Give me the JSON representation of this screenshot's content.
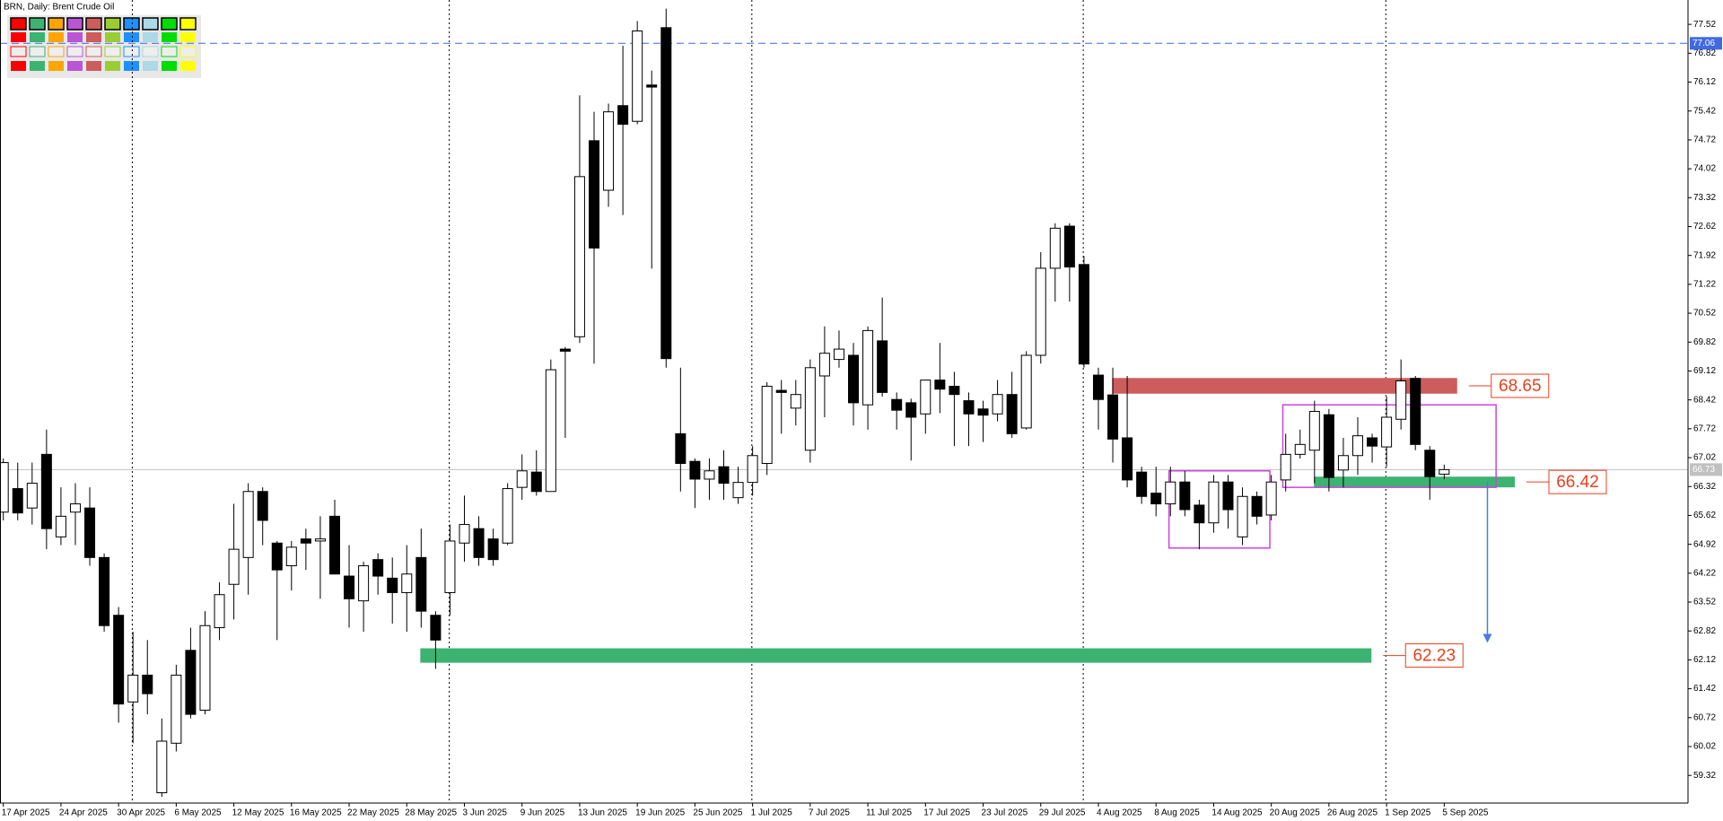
{
  "chart_data": {
    "type": "candlestick",
    "title": "BRN, Daily:  Brent Crude Oil",
    "categories": [
      "17 Apr 2025",
      null,
      null,
      null,
      "24 Apr 2025",
      null,
      null,
      null,
      "30 Apr 2025",
      null,
      null,
      null,
      "6 May 2025",
      null,
      null,
      null,
      "12 May 2025",
      null,
      null,
      null,
      "16 May 2025",
      null,
      null,
      null,
      "22 May 2025",
      null,
      null,
      null,
      "28 May 2025",
      null,
      null,
      null,
      "3 Jun 2025",
      null,
      null,
      null,
      "9 Jun 2025",
      null,
      null,
      null,
      "13 Jun 2025",
      null,
      null,
      null,
      "19 Jun 2025",
      null,
      null,
      null,
      "25 Jun 2025",
      null,
      null,
      null,
      "1 Jul 2025",
      null,
      null,
      null,
      "7 Jul 2025",
      null,
      null,
      null,
      "11 Jul 2025",
      null,
      null,
      null,
      "17 Jul 2025",
      null,
      null,
      null,
      "23 Jul 2025",
      null,
      null,
      null,
      "29 Jul 2025",
      null,
      null,
      null,
      "4 Aug 2025",
      null,
      null,
      null,
      "8 Aug 2025",
      null,
      null,
      null,
      "14 Aug 2025",
      null,
      null,
      null,
      "20 Aug 2025",
      null,
      null,
      null,
      "26 Aug 2025",
      null,
      null,
      null,
      "1 Sep 2025",
      null,
      null,
      null,
      "5 Sep 2025"
    ],
    "open": [
      65.7,
      66.27,
      65.8,
      67.1,
      65.1,
      65.7,
      65.8,
      64.6,
      63.2,
      61.1,
      61.75,
      58.9,
      60.1,
      62.35,
      60.9,
      62.9,
      63.95,
      64.6,
      66.2,
      64.95,
      64.4,
      65.05,
      65.0,
      65.6,
      64.15,
      63.55,
      64.55,
      64.1,
      63.75,
      64.6,
      63.2,
      63.75,
      64.95,
      65.3,
      65.05,
      64.95,
      66.3,
      66.67,
      66.2,
      69.65,
      69.95,
      74.7,
      73.5,
      75.55,
      75.17,
      76.05,
      77.44,
      67.6,
      66.93,
      66.5,
      66.8,
      66.05,
      66.42,
      66.88,
      68.65,
      68.22,
      67.2,
      69.0,
      69.4,
      69.5,
      68.3,
      69.85,
      68.43,
      68.35,
      68.08,
      68.9,
      68.75,
      68.4,
      68.2,
      68.08,
      68.55,
      67.74,
      69.5,
      71.61,
      72.63,
      71.7,
      69.02,
      68.54,
      67.5,
      66.67,
      66.16,
      65.9,
      66.43,
      65.87,
      65.44,
      66.43,
      65.1,
      66.08,
      65.63,
      66.48,
      67.1,
      67.2,
      68.06,
      66.72,
      67.07,
      67.5,
      67.28,
      67.95,
      68.94,
      67.2,
      66.62
    ],
    "high": [
      67.0,
      66.9,
      66.9,
      67.7,
      66.3,
      66.4,
      66.3,
      64.7,
      63.4,
      62.8,
      62.6,
      60.7,
      62.0,
      62.9,
      63.3,
      64.0,
      65.9,
      66.4,
      66.3,
      65.0,
      65.0,
      65.3,
      65.6,
      66.0,
      64.9,
      64.5,
      64.7,
      64.6,
      64.9,
      65.3,
      63.3,
      65.4,
      66.1,
      65.6,
      65.3,
      66.4,
      67.1,
      67.2,
      69.4,
      69.7,
      75.8,
      75.4,
      75.6,
      77.0,
      77.6,
      76.4,
      77.9,
      69.2,
      67.0,
      67.0,
      67.2,
      66.8,
      67.3,
      68.85,
      68.9,
      68.9,
      69.4,
      70.2,
      70.1,
      69.8,
      70.2,
      70.9,
      68.6,
      68.45,
      68.9,
      69.8,
      69.1,
      68.6,
      68.4,
      68.9,
      69.1,
      69.6,
      72.0,
      72.7,
      72.7,
      71.9,
      69.2,
      69.2,
      69.0,
      66.8,
      66.8,
      66.8,
      66.7,
      66.0,
      66.6,
      66.6,
      66.3,
      66.2,
      66.6,
      67.6,
      67.7,
      68.4,
      68.2,
      67.5,
      68.0,
      67.6,
      68.5,
      69.4,
      69.0,
      67.3,
      66.85
    ],
    "low": [
      65.5,
      65.5,
      65.4,
      64.8,
      64.9,
      64.9,
      64.4,
      62.8,
      60.6,
      60.1,
      60.8,
      58.8,
      59.9,
      60.7,
      60.8,
      62.6,
      63.1,
      63.7,
      64.9,
      62.6,
      63.8,
      64.3,
      63.6,
      64.2,
      62.9,
      62.8,
      63.7,
      63.0,
      62.8,
      62.9,
      61.9,
      63.2,
      64.5,
      64.4,
      64.4,
      64.9,
      66.0,
      66.1,
      66.2,
      67.5,
      69.8,
      69.3,
      73.1,
      72.9,
      75.1,
      71.6,
      69.2,
      66.2,
      65.8,
      66.0,
      66.0,
      65.9,
      66.1,
      66.6,
      67.6,
      67.8,
      66.9,
      68.0,
      69.2,
      67.8,
      67.7,
      68.5,
      67.7,
      66.95,
      67.6,
      68.1,
      67.3,
      67.3,
      67.4,
      67.9,
      67.5,
      67.7,
      69.3,
      70.8,
      70.8,
      69.2,
      67.7,
      66.9,
      66.3,
      65.9,
      65.6,
      65.6,
      65.6,
      64.8,
      65.2,
      65.3,
      64.9,
      65.4,
      65.5,
      66.2,
      67.0,
      66.4,
      66.2,
      66.3,
      66.6,
      66.9,
      66.8,
      67.7,
      67.2,
      66.0,
      66.5
    ],
    "close": [
      66.9,
      65.68,
      66.4,
      65.3,
      65.6,
      65.9,
      64.6,
      62.95,
      61.05,
      61.75,
      61.3,
      60.15,
      61.75,
      60.8,
      62.95,
      63.7,
      64.8,
      66.2,
      65.5,
      64.3,
      64.85,
      64.95,
      65.05,
      64.2,
      63.6,
      64.4,
      64.15,
      63.75,
      64.2,
      63.3,
      62.6,
      65.0,
      65.4,
      64.6,
      64.55,
      66.27,
      66.7,
      66.2,
      69.15,
      69.6,
      73.83,
      72.1,
      75.4,
      75.1,
      77.36,
      76.0,
      69.42,
      66.88,
      66.5,
      66.7,
      66.4,
      66.42,
      67.07,
      68.75,
      68.6,
      68.55,
      69.2,
      69.55,
      69.65,
      68.35,
      70.1,
      68.6,
      68.17,
      68.0,
      68.9,
      68.68,
      68.55,
      68.08,
      68.05,
      68.55,
      67.6,
      69.5,
      71.61,
      72.58,
      71.64,
      69.29,
      68.43,
      67.47,
      66.48,
      66.08,
      65.9,
      66.43,
      65.76,
      65.44,
      66.43,
      65.76,
      66.08,
      65.6,
      66.43,
      67.1,
      67.34,
      68.14,
      66.54,
      67.07,
      67.55,
      67.3,
      68.0,
      68.88,
      67.34,
      66.56,
      66.73
    ],
    "up_color": "#ffffff",
    "down_color": "#000000",
    "xlim": [
      -0.23,
      116.92
    ],
    "ylim": [
      58.65,
      78.11
    ],
    "yticks": [
      77.52,
      76.82,
      76.12,
      75.42,
      74.72,
      74.02,
      73.32,
      72.62,
      71.92,
      71.22,
      70.52,
      69.82,
      69.12,
      68.42,
      67.72,
      67.02,
      66.32,
      65.62,
      64.92,
      64.22,
      63.52,
      62.82,
      62.12,
      61.42,
      60.72,
      60.02,
      59.32
    ],
    "price_lines": [
      {
        "value": 77.06,
        "color": "#4169e1",
        "style": "dashed"
      },
      {
        "value": 66.73,
        "color": "#c0c0c0",
        "style": "solid"
      }
    ],
    "zones": [
      {
        "label": "68.65",
        "top": 68.95,
        "bottom": 68.57,
        "start": 76.95,
        "end": 100.9,
        "color": "#cd5c5c"
      },
      {
        "label": "66.42",
        "top": 66.56,
        "bottom": 66.3,
        "start": 90.96,
        "end": 104.9,
        "color": "#3cb371"
      },
      {
        "label": "62.23",
        "top": 62.4,
        "bottom": 62.05,
        "start": 28.94,
        "end": 94.95,
        "color": "#3cb371"
      }
    ],
    "zone_label_color": "#e8401c",
    "rectangles": [
      {
        "x": [
          80.9,
          87.9
        ],
        "y": [
          64.83,
          66.7
        ],
        "color": "#cc44dd"
      },
      {
        "x": [
          88.8,
          103.6
        ],
        "y": [
          66.3,
          68.3
        ],
        "color": "#cc44dd"
      }
    ],
    "arrow": {
      "x": 103.0,
      "y": [
        66.43,
        62.53
      ],
      "color": "#4a7de0"
    }
  }
}
